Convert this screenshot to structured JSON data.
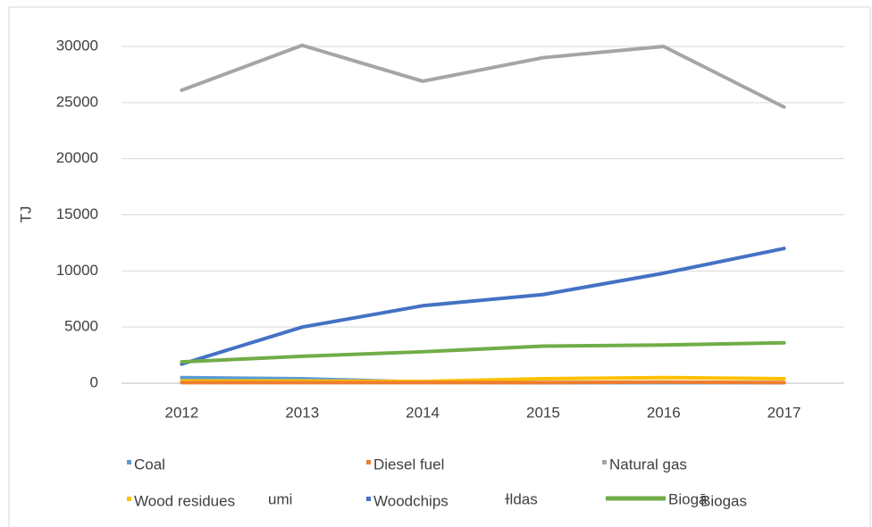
{
  "chart_data": {
    "type": "line",
    "y_label": "TJ",
    "x": [
      "2012",
      "2013",
      "2014",
      "2015",
      "2016",
      "2017"
    ],
    "series": [
      {
        "name": "Coal",
        "color": "#5b9bd5",
        "values": [
          500,
          400,
          100,
          50,
          50,
          50
        ]
      },
      {
        "name": "Diesel fuel",
        "color": "#ed7d31",
        "values": [
          50,
          50,
          50,
          50,
          100,
          50
        ]
      },
      {
        "name": "Natural gas",
        "color": "#a5a5a5",
        "values": [
          26100,
          30100,
          26900,
          29000,
          30000,
          24600
        ]
      },
      {
        "name": "Wood residues",
        "color": "#ffc000",
        "values": [
          200,
          200,
          150,
          400,
          500,
          400
        ]
      },
      {
        "name": "Woodchips",
        "color": "#4472c4",
        "values": [
          1700,
          5000,
          6900,
          7900,
          9800,
          12000
        ]
      },
      {
        "name": "Biogas",
        "color": "#70ad47",
        "values": [
          1900,
          2400,
          2800,
          3300,
          3400,
          3600
        ]
      }
    ],
    "legend_fragments": [
      "umi",
      "ɫldas",
      "Biogā"
    ],
    "ylim": [
      0,
      30000
    ],
    "yticks": [
      0,
      5000,
      10000,
      15000,
      20000,
      25000,
      30000
    ],
    "grid": true
  }
}
